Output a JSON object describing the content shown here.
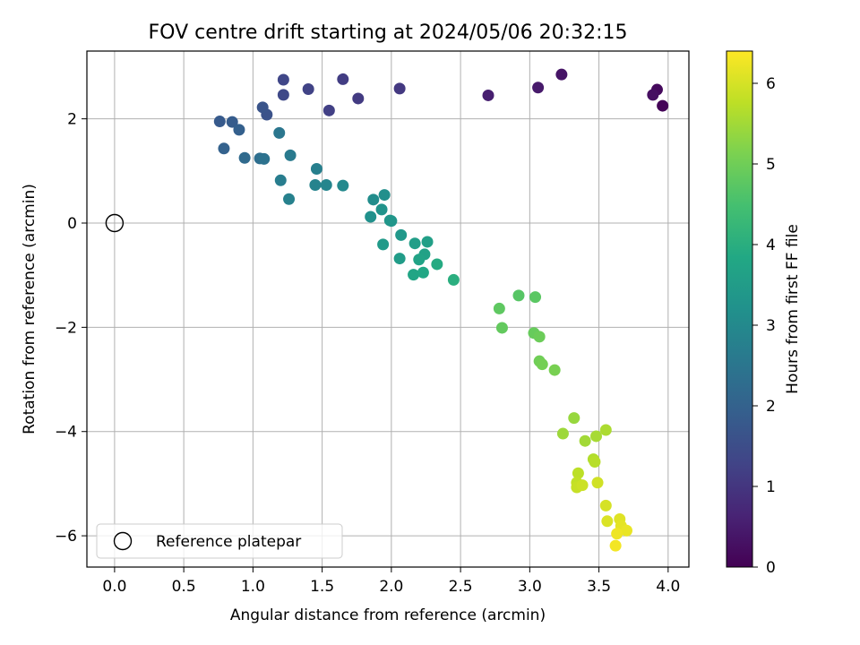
{
  "chart_data": {
    "type": "scatter",
    "title": "FOV centre drift starting at 2024/05/06 20:32:15",
    "xlabel": "Angular distance from reference (arcmin)",
    "ylabel": "Rotation from reference (arcmin)",
    "xlim": [
      -0.2,
      4.15
    ],
    "ylim": [
      -6.6,
      3.3
    ],
    "xticks": [
      "0.0",
      "0.5",
      "1.0",
      "1.5",
      "2.0",
      "2.5",
      "3.0",
      "3.5",
      "4.0"
    ],
    "xtick_values": [
      0.0,
      0.5,
      1.0,
      1.5,
      2.0,
      2.5,
      3.0,
      3.5,
      4.0
    ],
    "yticks": [
      "2",
      "0",
      "−2",
      "−4",
      "−6"
    ],
    "ytick_values": [
      2,
      0,
      -2,
      -4,
      -6
    ],
    "grid": true,
    "legend": {
      "position": "lower-left",
      "entries": [
        "Reference platepar"
      ]
    },
    "colorbar": {
      "label": "Hours from first FF file",
      "range": [
        0,
        6.4
      ],
      "ticks": [
        "0",
        "1",
        "2",
        "3",
        "4",
        "5",
        "6"
      ],
      "tick_values": [
        0,
        1,
        2,
        3,
        4,
        5,
        6
      ],
      "colormap": "viridis"
    },
    "reference_point": {
      "x": 0.0,
      "y": 0.0
    },
    "points": [
      {
        "x": 3.96,
        "y": 2.25,
        "c": 0.05
      },
      {
        "x": 3.92,
        "y": 2.56,
        "c": 0.15
      },
      {
        "x": 3.89,
        "y": 2.46,
        "c": 0.25
      },
      {
        "x": 3.23,
        "y": 2.85,
        "c": 0.35
      },
      {
        "x": 3.06,
        "y": 2.6,
        "c": 0.45
      },
      {
        "x": 2.7,
        "y": 2.45,
        "c": 0.55
      },
      {
        "x": 2.06,
        "y": 2.58,
        "c": 1.05
      },
      {
        "x": 1.76,
        "y": 2.39,
        "c": 1.1
      },
      {
        "x": 1.65,
        "y": 2.76,
        "c": 1.15
      },
      {
        "x": 1.55,
        "y": 2.16,
        "c": 1.2
      },
      {
        "x": 1.4,
        "y": 2.57,
        "c": 1.25
      },
      {
        "x": 1.22,
        "y": 2.75,
        "c": 1.35
      },
      {
        "x": 1.22,
        "y": 2.46,
        "c": 1.4
      },
      {
        "x": 1.1,
        "y": 2.08,
        "c": 1.6
      },
      {
        "x": 1.07,
        "y": 2.22,
        "c": 1.65
      },
      {
        "x": 0.76,
        "y": 1.95,
        "c": 1.8
      },
      {
        "x": 0.85,
        "y": 1.94,
        "c": 1.85
      },
      {
        "x": 0.9,
        "y": 1.79,
        "c": 1.95
      },
      {
        "x": 0.79,
        "y": 1.43,
        "c": 2.0
      },
      {
        "x": 0.94,
        "y": 1.25,
        "c": 2.2
      },
      {
        "x": 1.05,
        "y": 1.24,
        "c": 2.3
      },
      {
        "x": 1.08,
        "y": 1.23,
        "c": 2.4
      },
      {
        "x": 1.19,
        "y": 1.73,
        "c": 2.5
      },
      {
        "x": 1.27,
        "y": 1.3,
        "c": 2.6
      },
      {
        "x": 1.2,
        "y": 0.82,
        "c": 2.7
      },
      {
        "x": 1.26,
        "y": 0.46,
        "c": 2.8
      },
      {
        "x": 1.46,
        "y": 1.04,
        "c": 2.75
      },
      {
        "x": 1.45,
        "y": 0.73,
        "c": 2.85
      },
      {
        "x": 1.53,
        "y": 0.73,
        "c": 2.9
      },
      {
        "x": 1.65,
        "y": 0.72,
        "c": 3.0
      },
      {
        "x": 1.87,
        "y": 0.45,
        "c": 3.1
      },
      {
        "x": 1.95,
        "y": 0.54,
        "c": 3.15
      },
      {
        "x": 1.85,
        "y": 0.12,
        "c": 3.2
      },
      {
        "x": 1.93,
        "y": 0.26,
        "c": 3.25
      },
      {
        "x": 2.0,
        "y": 0.04,
        "c": 3.3
      },
      {
        "x": 1.99,
        "y": 0.05,
        "c": 3.35
      },
      {
        "x": 2.07,
        "y": -0.23,
        "c": 3.4
      },
      {
        "x": 1.94,
        "y": -0.41,
        "c": 3.45
      },
      {
        "x": 2.06,
        "y": -0.68,
        "c": 3.5
      },
      {
        "x": 2.17,
        "y": -0.39,
        "c": 3.55
      },
      {
        "x": 2.26,
        "y": -0.36,
        "c": 3.6
      },
      {
        "x": 2.24,
        "y": -0.6,
        "c": 3.65
      },
      {
        "x": 2.2,
        "y": -0.7,
        "c": 3.7
      },
      {
        "x": 2.16,
        "y": -0.99,
        "c": 3.75
      },
      {
        "x": 2.23,
        "y": -0.95,
        "c": 3.8
      },
      {
        "x": 2.33,
        "y": -0.79,
        "c": 3.9
      },
      {
        "x": 2.45,
        "y": -1.09,
        "c": 4.0
      },
      {
        "x": 2.92,
        "y": -1.39,
        "c": 4.7
      },
      {
        "x": 3.04,
        "y": -1.42,
        "c": 4.75
      },
      {
        "x": 2.78,
        "y": -1.64,
        "c": 4.8
      },
      {
        "x": 2.8,
        "y": -2.01,
        "c": 4.85
      },
      {
        "x": 3.03,
        "y": -2.11,
        "c": 4.9
      },
      {
        "x": 3.07,
        "y": -2.18,
        "c": 4.95
      },
      {
        "x": 3.07,
        "y": -2.65,
        "c": 5.0
      },
      {
        "x": 3.09,
        "y": -2.71,
        "c": 5.05
      },
      {
        "x": 3.18,
        "y": -2.82,
        "c": 5.1
      },
      {
        "x": 3.32,
        "y": -3.74,
        "c": 5.4
      },
      {
        "x": 3.24,
        "y": -4.04,
        "c": 5.45
      },
      {
        "x": 3.4,
        "y": -4.18,
        "c": 5.5
      },
      {
        "x": 3.48,
        "y": -4.09,
        "c": 5.55
      },
      {
        "x": 3.55,
        "y": -3.97,
        "c": 5.6
      },
      {
        "x": 3.46,
        "y": -4.53,
        "c": 5.65
      },
      {
        "x": 3.47,
        "y": -4.58,
        "c": 5.7
      },
      {
        "x": 3.35,
        "y": -4.8,
        "c": 5.75
      },
      {
        "x": 3.34,
        "y": -4.98,
        "c": 5.8
      },
      {
        "x": 3.34,
        "y": -5.07,
        "c": 5.85
      },
      {
        "x": 3.38,
        "y": -5.03,
        "c": 5.9
      },
      {
        "x": 3.49,
        "y": -4.98,
        "c": 5.95
      },
      {
        "x": 3.55,
        "y": -5.42,
        "c": 6.0
      },
      {
        "x": 3.56,
        "y": -5.72,
        "c": 6.05
      },
      {
        "x": 3.65,
        "y": -5.68,
        "c": 6.1
      },
      {
        "x": 3.66,
        "y": -5.81,
        "c": 6.15
      },
      {
        "x": 3.7,
        "y": -5.9,
        "c": 6.2
      },
      {
        "x": 3.63,
        "y": -5.96,
        "c": 6.25
      },
      {
        "x": 3.62,
        "y": -6.19,
        "c": 6.3
      }
    ]
  }
}
